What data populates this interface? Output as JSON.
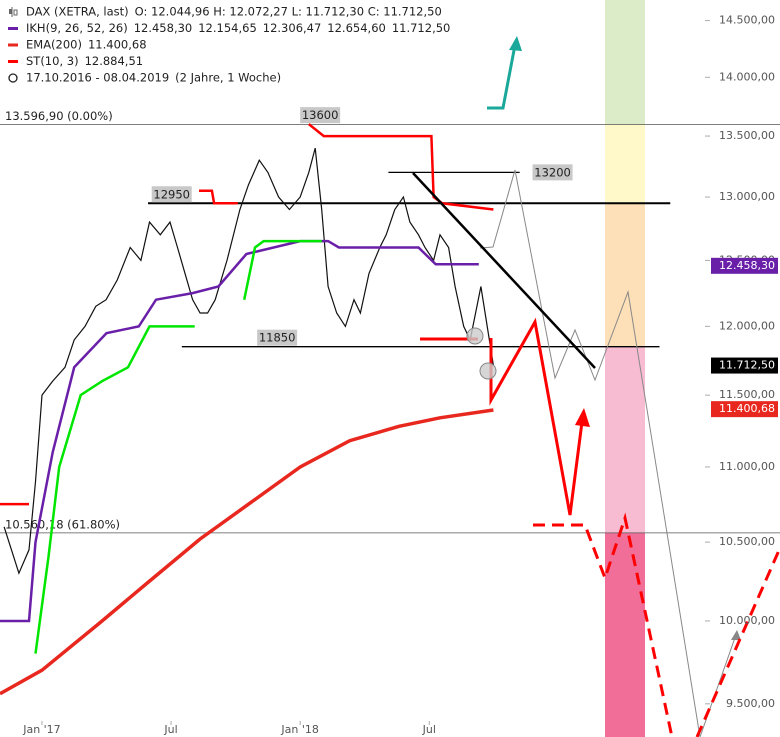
{
  "chart_data": {
    "type": "line",
    "log_scale": true,
    "date_range": "17.10.2016 - 08.04.2019",
    "period": "(2 Jahre, 1 Woche)",
    "xlim": [
      -1.95,
      34.3
    ],
    "xticks": [
      {
        "value": 0,
        "label": "Jan '17"
      },
      {
        "value": 6,
        "label": "Jul"
      },
      {
        "value": 12,
        "label": "Jan '18"
      },
      {
        "value": 18,
        "label": "Jul"
      }
    ],
    "ylim": [
      9307,
      14686
    ],
    "yticks": [
      {
        "value": 9500,
        "label": "9.500,00"
      },
      {
        "value": 10000,
        "label": "10.000,00"
      },
      {
        "value": 10500,
        "label": "10.500,00"
      },
      {
        "value": 11000,
        "label": "11.000,00"
      },
      {
        "value": 11500,
        "label": "11.500,00"
      },
      {
        "value": 12000,
        "label": "12.000,00"
      },
      {
        "value": 12500,
        "label": "12.500,00"
      },
      {
        "value": 13000,
        "label": "13.000,00"
      },
      {
        "value": 13500,
        "label": "13.500,00"
      },
      {
        "value": 14000,
        "label": "14.000,00"
      },
      {
        "value": 14500,
        "label": "14.500,00"
      }
    ],
    "series": [
      {
        "name": "DAX (XETRA, last)",
        "color": "#111111",
        "info": "O: 12.044,96 H: 12.072,27 L: 11.712,30 C: 11.712,50",
        "x": [
          -1.76,
          -1.07,
          -0.6,
          -0.3,
          0,
          0.5,
          1.07,
          1.5,
          2,
          2.5,
          2.98,
          3.5,
          4.1,
          4.6,
          5,
          5.5,
          5.95,
          6.3,
          6.65,
          7,
          7.35,
          7.7,
          8.05,
          8.6,
          9.2,
          9.6,
          10.1,
          10.5,
          11,
          11.5,
          12,
          12.4,
          12.7,
          13,
          13.3,
          13.7,
          14.1,
          14.5,
          14.8,
          15.2,
          15.7,
          16,
          16.4,
          16.8,
          17.1,
          17.5,
          17.8,
          18.2,
          18.5,
          18.9,
          19.2,
          19.6,
          19.9,
          20.4,
          20.98
        ],
        "values": [
          10600,
          10300,
          10450,
          10900,
          11500,
          11600,
          11700,
          11900,
          12000,
          12150,
          12200,
          12350,
          12600,
          12500,
          12800,
          12700,
          12800,
          12600,
          12400,
          12200,
          12100,
          12100,
          12200,
          12500,
          12900,
          13100,
          13300,
          13200,
          13000,
          12900,
          13000,
          13200,
          13400,
          12900,
          12300,
          12100,
          12000,
          12200,
          12100,
          12400,
          12600,
          12700,
          12900,
          13000,
          12800,
          12700,
          12600,
          12500,
          12700,
          12600,
          12300,
          12000,
          11900,
          12300,
          11712.5
        ]
      },
      {
        "name": "IKH(9, 26, 52, 26)",
        "color": "#6a1fa8",
        "info": [
          {
            "text": "12.458,30",
            "color": "#6a1fa8"
          },
          {
            "text": "12.154,65",
            "color": "#888888"
          },
          {
            "text": "12.306,47",
            "color": "#2a9fb0"
          },
          {
            "text": "12.654,60",
            "color": "#6a1fa8"
          },
          {
            "text": "11.712,50",
            "color": "#6a1fa8"
          }
        ],
        "x": [
          -1.95,
          -0.6,
          -0.3,
          0.5,
          1.5,
          3,
          4.5,
          5.3,
          7,
          8.2,
          9.5,
          12,
          13.3,
          13.8,
          17.5,
          18.3,
          20.3
        ],
        "values": [
          10000,
          10000,
          10500,
          11100,
          11700,
          11950,
          12000,
          12200,
          12250,
          12300,
          12550,
          12650,
          12650,
          12600,
          12600,
          12470,
          12470
        ]
      },
      {
        "name": "EMA(200)",
        "color": "#e8281e",
        "info": "11.400,68",
        "x": [
          -1.95,
          0,
          2.7,
          5,
          7.35,
          9.7,
          12,
          14.3,
          16.6,
          18.5,
          20.98
        ],
        "values": [
          9560,
          9700,
          9990,
          10250,
          10520,
          10760,
          11000,
          11180,
          11280,
          11340,
          11395
        ]
      },
      {
        "name": "ST(10, 3)",
        "color": "#ff0000",
        "info": "12.884,51",
        "x": [
          -1.95,
          -0.6,
          3,
          7.3,
          7.9,
          8,
          9.1,
          10,
          12.4,
          13.1,
          18.1,
          18.2,
          18.6,
          20.98
        ],
        "values": [
          10750,
          10750,
          null,
          13050,
          13050,
          12950,
          12950,
          null,
          13600,
          13500,
          13500,
          13000,
          12950,
          12900
        ],
        "support_color": "#00e600",
        "support_x": [
          -0.3,
          0.3,
          0.8,
          1.8,
          2.8,
          4,
          5,
          7.1,
          8,
          9.4,
          9.9,
          10.3,
          13
        ],
        "support_values": [
          9800,
          10400,
          11000,
          11500,
          11600,
          11700,
          12000,
          12000,
          null,
          12200,
          12600,
          12650,
          12650
        ]
      }
    ],
    "price_labels": [
      {
        "value": 12458.3,
        "label": "12.458,30",
        "color": "#6a1fa8"
      },
      {
        "value": 11712.5,
        "label": "11.712,50",
        "color": "#000000"
      },
      {
        "value": 11400.68,
        "label": "11.400,68",
        "color": "#e8281e"
      }
    ],
    "levels": [
      {
        "value": 13596.9,
        "label": "13.596,90 (0.00%)",
        "style": "fib"
      },
      {
        "value": 10560.18,
        "label": "10.560,18 (61.80%)",
        "style": "fib"
      },
      {
        "value": 12950,
        "label": "12950",
        "x": [
          4.93,
          29.2
        ],
        "box_x": 5.1,
        "style": "line"
      },
      {
        "value": 11850,
        "label": "11850",
        "x": [
          6.5,
          28.7
        ],
        "box_x": 10.0,
        "style": "line"
      },
      {
        "value": 13200,
        "label": "13200",
        "x": [
          16.1,
          22.2
        ],
        "box_x": 22.8,
        "style": "side"
      },
      {
        "value": 13600,
        "label": "13600",
        "box_x": 12.0,
        "style": "box"
      }
    ],
    "zones": [
      "#dcebc8",
      "#fff8c8",
      "#fde0b8",
      "#f8bcd2",
      "#f06e98"
    ]
  }
}
